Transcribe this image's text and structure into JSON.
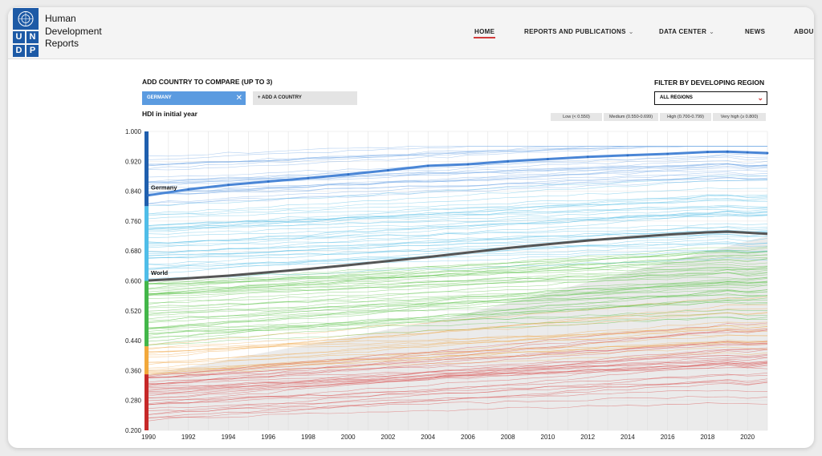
{
  "header": {
    "logo_letters": [
      "U",
      "N",
      "D",
      "P"
    ],
    "logo_lines": [
      "Human",
      "Development",
      "Reports"
    ],
    "nav": [
      {
        "label": "HOME",
        "active": true
      },
      {
        "label": "REPORTS AND PUBLICATIONS",
        "dropdown": true
      },
      {
        "label": "DATA CENTER",
        "dropdown": true
      },
      {
        "label": "NEWS"
      },
      {
        "label": "ABOU"
      }
    ]
  },
  "controls": {
    "compare_title": "ADD COUNTRY TO COMPARE (UP TO 3)",
    "selected_country": "GERMANY",
    "remove_icon": "close-icon",
    "add_country": "ADD A COUNTRY",
    "add_icon": "plus-icon",
    "filter_title": "FILTER BY DEVELOPING REGION",
    "filter_value": "ALL REGIONS",
    "filter_icon": "chevron-down-icon",
    "hdi_label": "HDI in initial year"
  },
  "legend": [
    {
      "label": "Low (< 0.550)",
      "color": "#d43a3a"
    },
    {
      "label": "Medium (0.550-0.699)",
      "color": "#f2a83b"
    },
    {
      "label": "High (0.700-0.799)",
      "color": "#5cc34a"
    },
    {
      "label": "Very high (≥ 0.800)",
      "color": "#45b6e6"
    }
  ],
  "chart_data": {
    "type": "line",
    "xlim": [
      1990,
      2021
    ],
    "ylim": [
      0.2,
      1.0
    ],
    "x_ticks": [
      1990,
      1992,
      1994,
      1996,
      1998,
      2000,
      2002,
      2004,
      2006,
      2008,
      2010,
      2012,
      2014,
      2016,
      2018,
      2020
    ],
    "y_ticks": [
      0.2,
      0.28,
      0.36,
      0.44,
      0.52,
      0.6,
      0.68,
      0.76,
      0.84,
      0.92,
      1.0
    ],
    "y_tick_labels": [
      "0.200",
      "0.280",
      "0.360",
      "0.440",
      "0.520",
      "0.600",
      "0.680",
      "0.760",
      "0.840",
      "0.920",
      "1.000"
    ],
    "grid": true,
    "highlighted": [
      {
        "name": "Germany",
        "color": "#4a86d6",
        "x": [
          1990,
          1992,
          1994,
          1996,
          1998,
          2000,
          2002,
          2004,
          2006,
          2008,
          2010,
          2012,
          2014,
          2016,
          2018,
          2019,
          2020,
          2021
        ],
        "y": [
          0.829,
          0.845,
          0.857,
          0.866,
          0.875,
          0.885,
          0.896,
          0.908,
          0.912,
          0.92,
          0.926,
          0.932,
          0.936,
          0.94,
          0.945,
          0.946,
          0.944,
          0.942
        ]
      },
      {
        "name": "World",
        "color": "#555555",
        "x": [
          1990,
          1992,
          1994,
          1996,
          1998,
          2000,
          2002,
          2004,
          2006,
          2008,
          2010,
          2012,
          2014,
          2016,
          2018,
          2019,
          2020,
          2021
        ],
        "y": [
          0.601,
          0.607,
          0.614,
          0.623,
          0.632,
          0.642,
          0.653,
          0.664,
          0.676,
          0.688,
          0.698,
          0.708,
          0.716,
          0.724,
          0.73,
          0.732,
          0.729,
          0.726
        ]
      }
    ],
    "bands": [
      {
        "from": 0.2,
        "to": 0.35,
        "color": "#c62828"
      },
      {
        "from": 0.35,
        "to": 0.425,
        "color": "#f2a83b"
      },
      {
        "from": 0.425,
        "to": 0.6,
        "color": "#43b649"
      },
      {
        "from": 0.6,
        "to": 0.8,
        "color": "#4fbde8"
      },
      {
        "from": 0.8,
        "to": 1.0,
        "color": "#1f5fae"
      }
    ]
  }
}
